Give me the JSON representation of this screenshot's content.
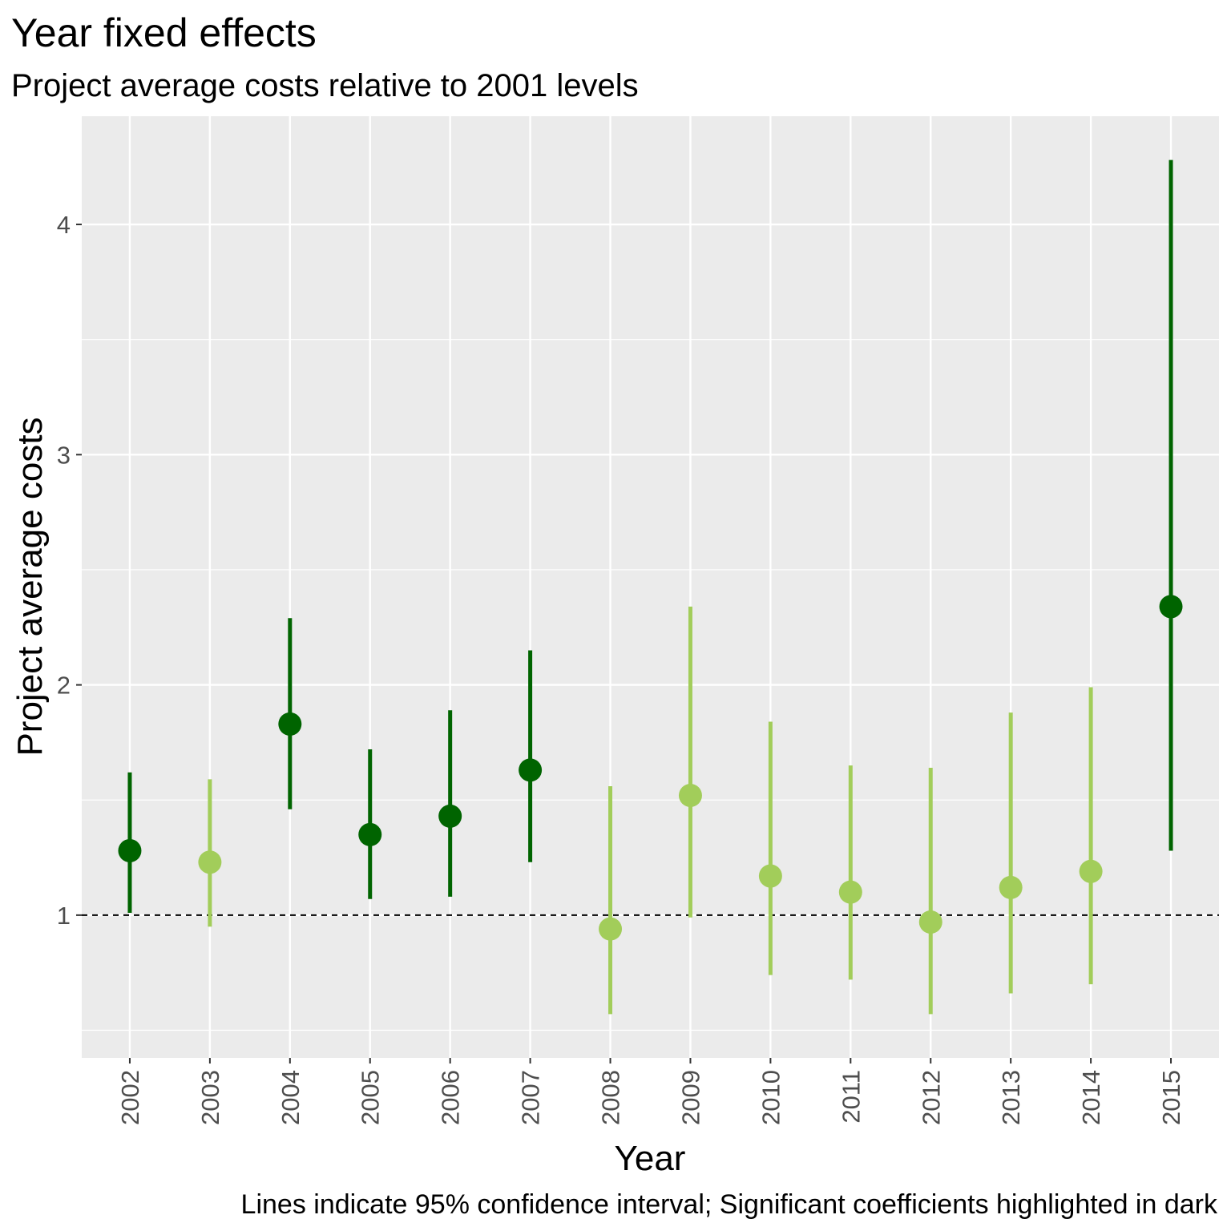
{
  "chart_data": {
    "type": "scatter",
    "title": "Year fixed effects",
    "subtitle": "Project average costs relative to 2001 levels",
    "xlabel": "Year",
    "ylabel": "Project average costs",
    "caption": "Lines indicate 95% confidence interval; Significant coefficients highlighted in dark",
    "ylim": [
      0.38,
      4.47
    ],
    "y_ticks": [
      1,
      2,
      3,
      4
    ],
    "reference_line": 1,
    "grid": true,
    "colors": {
      "significant": "#006400",
      "not_significant": "#a2cd5a",
      "panel": "#ebebeb",
      "grid": "#ffffff"
    },
    "points": [
      {
        "x": "2002",
        "y": 1.28,
        "lo": 1.01,
        "hi": 1.62,
        "significant": true
      },
      {
        "x": "2003",
        "y": 1.23,
        "lo": 0.95,
        "hi": 1.59,
        "significant": false
      },
      {
        "x": "2004",
        "y": 1.83,
        "lo": 1.46,
        "hi": 2.29,
        "significant": true
      },
      {
        "x": "2005",
        "y": 1.35,
        "lo": 1.07,
        "hi": 1.72,
        "significant": true
      },
      {
        "x": "2006",
        "y": 1.43,
        "lo": 1.08,
        "hi": 1.89,
        "significant": true
      },
      {
        "x": "2007",
        "y": 1.63,
        "lo": 1.23,
        "hi": 2.15,
        "significant": true
      },
      {
        "x": "2008",
        "y": 0.94,
        "lo": 0.57,
        "hi": 1.56,
        "significant": false
      },
      {
        "x": "2009",
        "y": 1.52,
        "lo": 0.99,
        "hi": 2.34,
        "significant": false
      },
      {
        "x": "2010",
        "y": 1.17,
        "lo": 0.74,
        "hi": 1.84,
        "significant": false
      },
      {
        "x": "2011",
        "y": 1.1,
        "lo": 0.72,
        "hi": 1.65,
        "significant": false
      },
      {
        "x": "2012",
        "y": 0.97,
        "lo": 0.57,
        "hi": 1.64,
        "significant": false
      },
      {
        "x": "2013",
        "y": 1.12,
        "lo": 0.66,
        "hi": 1.88,
        "significant": false
      },
      {
        "x": "2014",
        "y": 1.19,
        "lo": 0.7,
        "hi": 1.99,
        "significant": false
      },
      {
        "x": "2015",
        "y": 2.34,
        "lo": 1.28,
        "hi": 4.28,
        "significant": true
      }
    ]
  }
}
